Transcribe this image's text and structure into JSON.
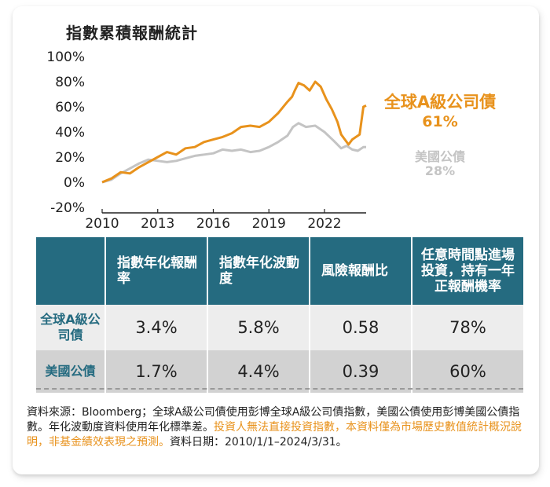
{
  "chart_data": {
    "type": "line",
    "title": "指數累積報酬統計",
    "x_ticks": [
      "2010",
      "2013",
      "2016",
      "2019",
      "2022"
    ],
    "y_ticks": [
      "100%",
      "80%",
      "60%",
      "40%",
      "20%",
      "0%",
      "-20%"
    ],
    "ylim": [
      -20,
      100
    ],
    "xlim": [
      2010,
      2024.25
    ],
    "grid": false,
    "series": [
      {
        "name": "全球A級公司債",
        "color": "#e8921c",
        "end_value": "61%",
        "points": [
          [
            2010,
            0
          ],
          [
            2010.5,
            3
          ],
          [
            2011,
            8
          ],
          [
            2011.5,
            7
          ],
          [
            2012,
            12
          ],
          [
            2012.5,
            16
          ],
          [
            2013,
            20
          ],
          [
            2013.5,
            24
          ],
          [
            2014,
            22
          ],
          [
            2014.5,
            27
          ],
          [
            2015,
            28
          ],
          [
            2015.5,
            32
          ],
          [
            2016,
            34
          ],
          [
            2016.5,
            36
          ],
          [
            2017,
            39
          ],
          [
            2017.5,
            44
          ],
          [
            2018,
            45
          ],
          [
            2018.5,
            44
          ],
          [
            2019,
            48
          ],
          [
            2019.5,
            55
          ],
          [
            2020,
            64
          ],
          [
            2020.25,
            68
          ],
          [
            2020.4,
            73
          ],
          [
            2020.6,
            79
          ],
          [
            2020.9,
            77
          ],
          [
            2021.2,
            73
          ],
          [
            2021.5,
            80
          ],
          [
            2021.8,
            76
          ],
          [
            2022.1,
            66
          ],
          [
            2022.4,
            58
          ],
          [
            2022.7,
            48
          ],
          [
            2022.9,
            38
          ],
          [
            2023.1,
            34
          ],
          [
            2023.3,
            30
          ],
          [
            2023.5,
            34
          ],
          [
            2023.7,
            36
          ],
          [
            2023.9,
            38
          ],
          [
            2024.1,
            60
          ],
          [
            2024.25,
            61
          ]
        ]
      },
      {
        "name": "美國公債",
        "color": "#c4c4c4",
        "end_value": "28%",
        "points": [
          [
            2010,
            0
          ],
          [
            2010.5,
            2
          ],
          [
            2011,
            7
          ],
          [
            2011.5,
            11
          ],
          [
            2012,
            15
          ],
          [
            2012.5,
            18
          ],
          [
            2013,
            17
          ],
          [
            2013.5,
            16
          ],
          [
            2014,
            17
          ],
          [
            2014.5,
            19
          ],
          [
            2015,
            21
          ],
          [
            2015.5,
            22
          ],
          [
            2016,
            23
          ],
          [
            2016.5,
            26
          ],
          [
            2017,
            25
          ],
          [
            2017.5,
            26
          ],
          [
            2018,
            24
          ],
          [
            2018.5,
            25
          ],
          [
            2019,
            28
          ],
          [
            2019.5,
            32
          ],
          [
            2020,
            37
          ],
          [
            2020.3,
            44
          ],
          [
            2020.6,
            47
          ],
          [
            2021,
            44
          ],
          [
            2021.5,
            45
          ],
          [
            2022,
            40
          ],
          [
            2022.5,
            33
          ],
          [
            2022.9,
            27
          ],
          [
            2023.2,
            29
          ],
          [
            2023.5,
            26
          ],
          [
            2023.8,
            25
          ],
          [
            2024.1,
            28
          ],
          [
            2024.25,
            28
          ]
        ]
      }
    ]
  },
  "legend": {
    "a_name": "全球A級公司債",
    "a_value": "61%",
    "b_name": "美國公債",
    "b_value": "28%"
  },
  "table": {
    "headers": [
      "",
      "指數年化報酬率",
      "指數年化波動度",
      "風險報酬比",
      "任意時間點進場投資，持有一年正報酬機率"
    ],
    "rows": [
      {
        "label": "全球A級公司債",
        "cells": [
          "3.4%",
          "5.8%",
          "0.58",
          "78%"
        ]
      },
      {
        "label": "美國公債",
        "cells": [
          "1.7%",
          "4.4%",
          "0.39",
          "60%"
        ]
      }
    ]
  },
  "note": {
    "part1": "資料來源：Bloomberg；全球A級公司債使用彭博全球A級公司債指數，美國公債使用彭博美國公債指數。年化波動度資料使用年化標準差。",
    "highlight": "投資人無法直接投資指數，本資料僅為市場歷史數值統計概況說明，非基金績效表現之預測。",
    "part2": "資料日期：2010/1/1–2024/3/31。"
  },
  "colors": {
    "accent_orange": "#e8921c",
    "series_gray": "#c4c4c4",
    "table_header": "#256b80"
  }
}
